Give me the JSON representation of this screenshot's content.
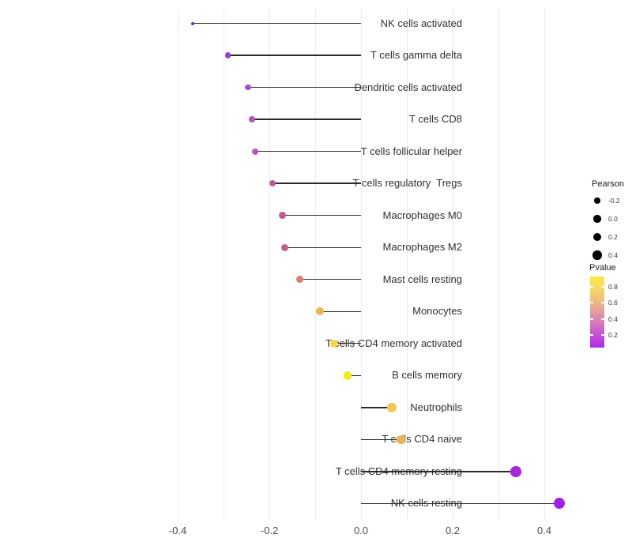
{
  "chart_data": {
    "type": "scatter",
    "subtype": "lollipop",
    "title": "",
    "xlabel": "",
    "ylabel": "",
    "x_tick_labels": [
      "-0.4",
      "-0.2",
      "0.0",
      "0.2",
      "0.4"
    ],
    "x_ticks": [
      -0.4,
      -0.2,
      0.0,
      0.2,
      0.4
    ],
    "x_gridlines": [
      -0.4,
      -0.3,
      -0.2,
      -0.1,
      0.0,
      0.1,
      0.2,
      0.3,
      0.4
    ],
    "xlim": [
      -0.41,
      0.475
    ],
    "grid": "vertical light-gray gridlines every 0.1, no horizontal grid",
    "baseline_x": 0.0,
    "size_encoding": "Pearson correlation",
    "color_encoding": "Pvalue (purple = low, yellow = high)",
    "rows": [
      {
        "label": "NK cells activated",
        "pearson": -0.367,
        "pvalue": 0.02,
        "color": "#8127cc"
      },
      {
        "label": "T cells gamma delta",
        "pearson": -0.29,
        "pvalue": 0.13,
        "color": "#9a41c6"
      },
      {
        "label": "Dendritic cells activated",
        "pearson": -0.247,
        "pvalue": 0.19,
        "color": "#ae4dc5"
      },
      {
        "label": "T cells CD8",
        "pearson": -0.238,
        "pvalue": 0.21,
        "color": "#b751c4"
      },
      {
        "label": "T cells follicular helper",
        "pearson": -0.231,
        "pvalue": 0.23,
        "color": "#bc55bd"
      },
      {
        "label": "T cells regulatory  Tregs",
        "pearson": -0.193,
        "pvalue": 0.3,
        "color": "#c2559e"
      },
      {
        "label": "Macrophages M0",
        "pearson": -0.171,
        "pvalue": 0.33,
        "color": "#c65a8f"
      },
      {
        "label": "Macrophages M2",
        "pearson": -0.166,
        "pvalue": 0.35,
        "color": "#c85d86"
      },
      {
        "label": "Mast cells resting",
        "pearson": -0.134,
        "pvalue": 0.47,
        "color": "#d98167"
      },
      {
        "label": "Monocytes",
        "pearson": -0.09,
        "pvalue": 0.63,
        "color": "#edb44c"
      },
      {
        "label": "T cells CD4 memory activated",
        "pearson": -0.059,
        "pvalue": 0.75,
        "color": "#f3d93b"
      },
      {
        "label": "B cells memory",
        "pearson": -0.029,
        "pvalue": 0.87,
        "color": "#f1ec16"
      },
      {
        "label": "Neutrophils",
        "pearson": 0.067,
        "pvalue": 0.7,
        "color": "#f1c756"
      },
      {
        "label": "T cells CD4 naive",
        "pearson": 0.088,
        "pvalue": 0.64,
        "color": "#edb457"
      },
      {
        "label": "T cells CD4 memory resting",
        "pearson": 0.338,
        "pvalue": 0.07,
        "color": "#a527dd"
      },
      {
        "label": "NK cells resting",
        "pearson": 0.433,
        "pvalue": 0.05,
        "color": "#a21fe4"
      }
    ]
  },
  "legend": {
    "pearson": {
      "title": "Pearson",
      "items": [
        {
          "label": "-0.2",
          "value": -0.2
        },
        {
          "label": "0.0",
          "value": 0.0
        },
        {
          "label": "0.2",
          "value": 0.2
        },
        {
          "label": "0.4",
          "value": 0.4
        }
      ],
      "dot_color": "#000000"
    },
    "pvalue": {
      "title": "Pvalue",
      "tick_labels": [
        "0.8",
        "0.6",
        "0.4",
        "0.2"
      ],
      "tick_values": [
        0.8,
        0.6,
        0.4,
        0.2
      ],
      "gradient_top_color": "#fce93e",
      "gradient_bottom_color": "#af2be8",
      "range": [
        0.04,
        0.93
      ]
    }
  },
  "style_colors": {
    "background": "#ffffff",
    "gridline": "#ebebeb",
    "stem": "#2b2b2b",
    "axis_text": "#4d4d4d",
    "label_text": "#303030"
  }
}
